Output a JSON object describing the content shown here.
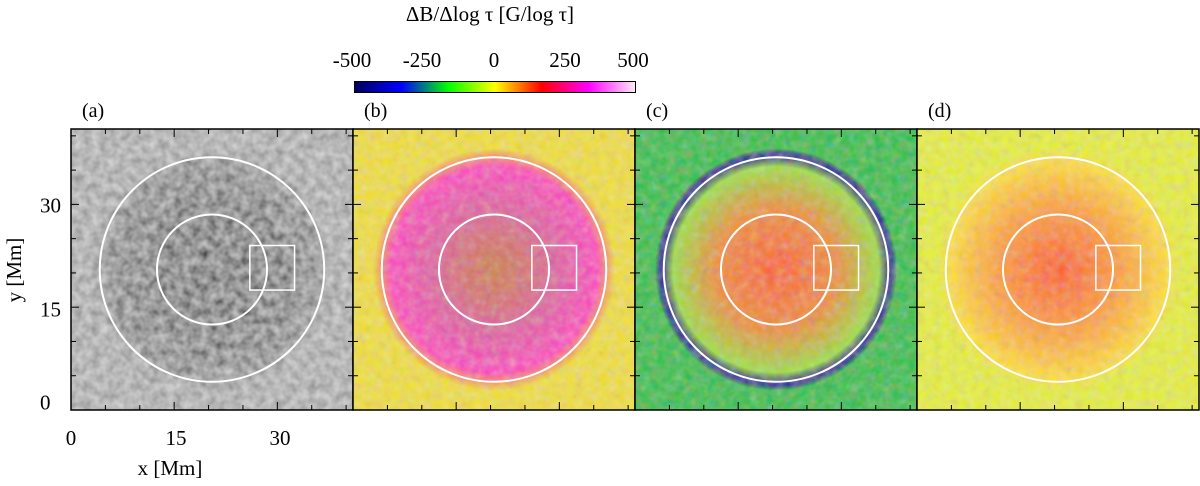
{
  "chart_data": {
    "type": "heatmap",
    "colorbar": {
      "title": "ΔB/Δlog τ [G/log τ]",
      "ticks": [
        "-500",
        "-250",
        "0",
        "250",
        "500"
      ],
      "range": [
        -500,
        500
      ],
      "colors": [
        "#000060",
        "#0000ff",
        "#00ff00",
        "#ffff00",
        "#ff0000",
        "#ff00ff",
        "#ffe8f4"
      ]
    },
    "xlabel": "x [Mm]",
    "ylabel": "y [Mm]",
    "xticks": [
      "0",
      "15",
      "30"
    ],
    "yticks": [
      "0",
      "15",
      "30"
    ],
    "xlim": [
      0,
      41
    ],
    "ylim": [
      0,
      41
    ],
    "panels": [
      {
        "label": "(a)",
        "kind": "grayscale continuum intensity",
        "base": "#8a8a8a",
        "umbra": "#1a1a1a"
      },
      {
        "label": "(b)",
        "kind": "colormap",
        "base": "#f2e020",
        "accent": "#ff40c0"
      },
      {
        "label": "(c)",
        "kind": "colormap",
        "base": "#20c040",
        "accent": "#1010a0"
      },
      {
        "label": "(d)",
        "kind": "colormap",
        "base": "#e8f020",
        "accent": "#ff3040"
      }
    ],
    "overlays": {
      "inner_circle_radius_mm": 8,
      "outer_circle_radius_mm": 16,
      "center_mm": [
        20.5,
        20.5
      ],
      "box_mm": {
        "x0": 26,
        "x1": 32.5,
        "y0": 17.5,
        "y1": 24
      },
      "color": "#ffffff"
    }
  }
}
